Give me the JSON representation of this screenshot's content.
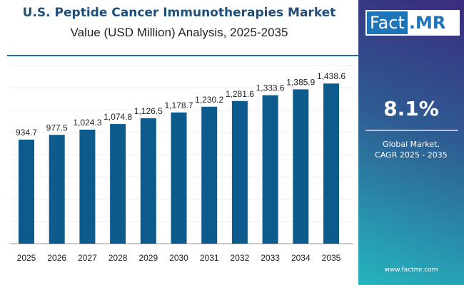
{
  "chart_data": {
    "type": "bar",
    "title": "U.S. Peptide Cancer Immunotherapies Market",
    "subtitle": "Value (USD Million) Analysis, 2025-2035",
    "categories": [
      "2025",
      "2026",
      "2027",
      "2028",
      "2029",
      "2030",
      "2031",
      "2032",
      "2033",
      "2034",
      "2035"
    ],
    "values": [
      934.7,
      977.5,
      1024.3,
      1074.8,
      1126.5,
      1178.7,
      1230.2,
      1281.6,
      1333.6,
      1385.9,
      1438.6
    ],
    "labels": [
      "934.7",
      "977.5",
      "1,024.3",
      "1,074.8",
      "1,126.5",
      "1,178.7",
      "1,230.2",
      "1,281.6",
      "1,333.6",
      "1,385.9",
      "1,438.6"
    ],
    "ylim": [
      0,
      1600
    ],
    "grid": true,
    "bar_color": "#0d5a8c"
  },
  "panel": {
    "logo_left": "Fact",
    "logo_right": ".MR",
    "cagr": "8.1%",
    "caption_line1": "Global Market,",
    "caption_line2": "CAGR 2025 - 2035",
    "url": "www.factmr.com"
  }
}
